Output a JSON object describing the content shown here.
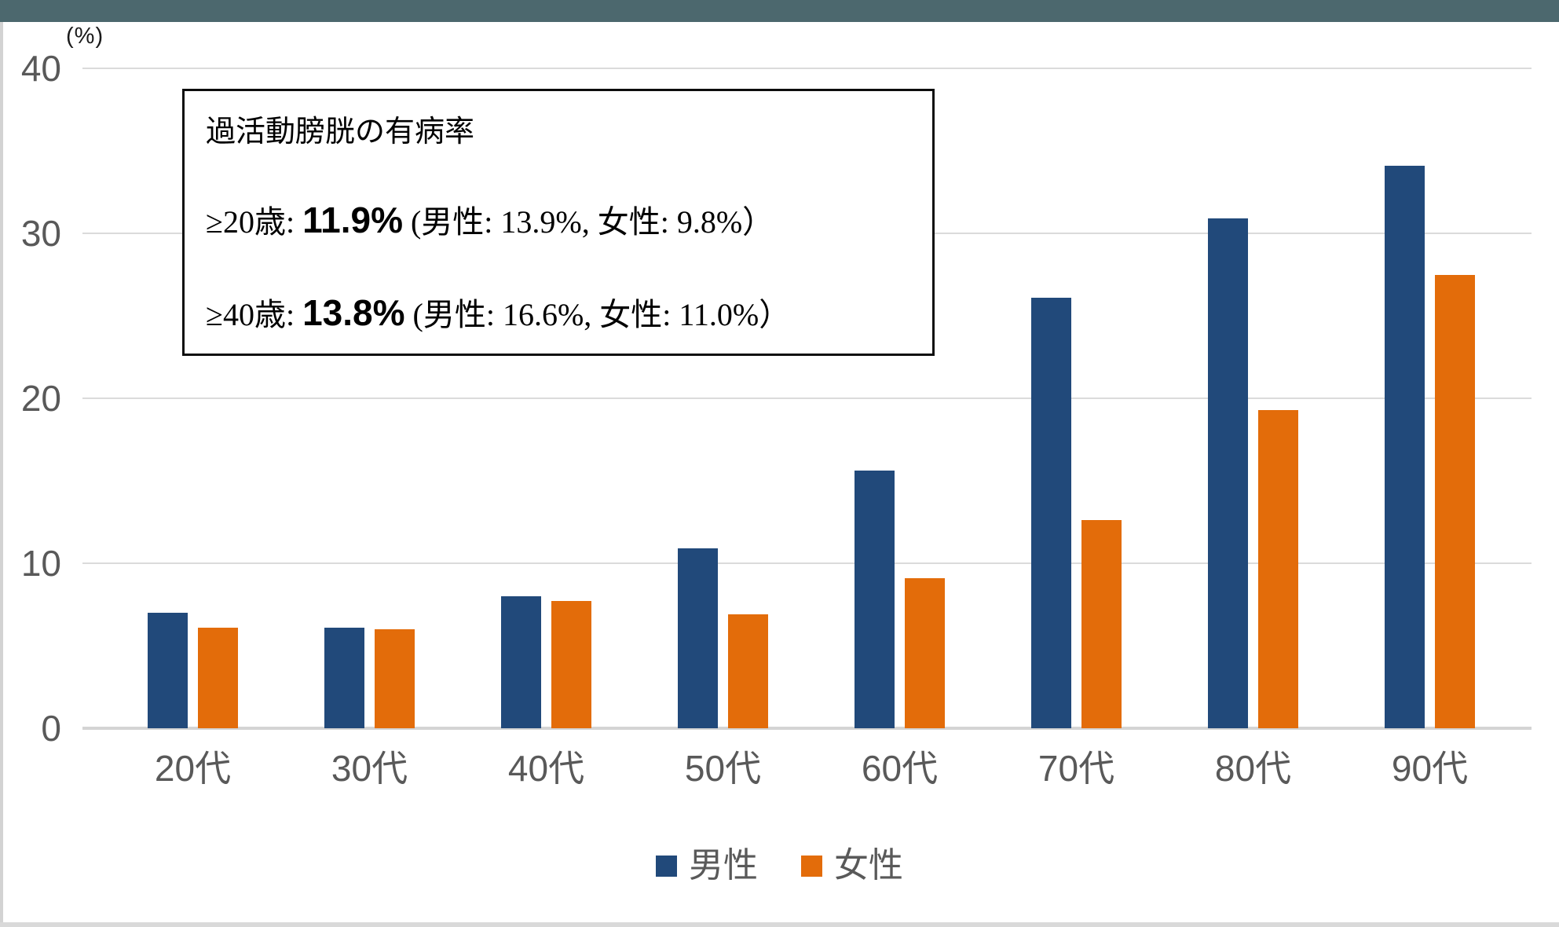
{
  "top_band_color": "#4C686E",
  "annotation": {
    "title": "過活動膀胱の有病率",
    "lines": [
      {
        "prefix": "≥20歳: ",
        "value": "11.9%",
        "detail": " (男性: 13.9%, 女性: 9.8%）"
      },
      {
        "prefix": "≥40歳: ",
        "value": "13.8%",
        "detail": " (男性: 16.6%, 女性: 11.0%）"
      }
    ]
  },
  "chart_data": {
    "type": "bar",
    "title": "過活動膀胱の有病率",
    "categories": [
      "20代",
      "30代",
      "40代",
      "50代",
      "60代",
      "70代",
      "80代",
      "90代"
    ],
    "series": [
      {
        "name": "男性",
        "color": "#21497A",
        "values": [
          7.0,
          6.1,
          8.0,
          10.9,
          15.6,
          26.1,
          30.9,
          34.1
        ]
      },
      {
        "name": "女性",
        "color": "#E36C0A",
        "values": [
          6.1,
          6.0,
          7.7,
          6.9,
          9.1,
          12.6,
          19.3,
          27.5
        ]
      }
    ],
    "ylabel_unit": "(%)",
    "y_ticks": [
      0,
      10,
      20,
      30,
      40
    ],
    "ylim": [
      0,
      40
    ],
    "grid": true,
    "legend_position": "bottom",
    "axis_text_color": "#595959",
    "gridline_color": "#DBDBDB"
  }
}
